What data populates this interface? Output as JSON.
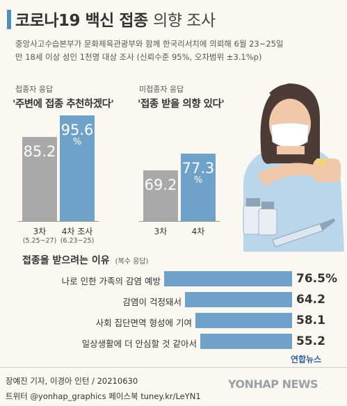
{
  "title": {
    "main": "코로나19 백신 접종",
    "rest": "의향 조사"
  },
  "subtitle": {
    "line1": "중앙사고수습본부가 문화체육관광부와 함께 한국리서치에 의뢰해 6월 23~25일",
    "line2": "만 18세 이상 성인 1천명 대상 조사 (신뢰수준 95%, 오차범위 ±3.1%p)"
  },
  "colors": {
    "bar_gray": "#a9a9a9",
    "bar_blue": "#6fa2c8",
    "accent": "#4a90b8",
    "background": "#fbf8f1"
  },
  "chart_data": [
    {
      "type": "bar",
      "group_label": "접종자 응답",
      "title": "'주변에 접종 추천하겠다'",
      "categories": [
        "3차",
        "4차 조사"
      ],
      "category_notes": [
        "(5.25~27)",
        "(6.23~25)"
      ],
      "values": [
        85.2,
        95.6
      ],
      "value_labels": [
        "85.2",
        "95.6"
      ],
      "unit": "%",
      "colors": [
        "#a9a9a9",
        "#6fa2c8"
      ],
      "ylim": [
        0,
        100
      ]
    },
    {
      "type": "bar",
      "group_label": "미접종자 응답",
      "title": "'접종 받을 의향 있다'",
      "categories": [
        "3차",
        "4차"
      ],
      "values": [
        69.2,
        77.3
      ],
      "value_labels": [
        "69.2",
        "77.3"
      ],
      "unit": "%",
      "colors": [
        "#a9a9a9",
        "#6fa2c8"
      ],
      "ylim": [
        0,
        100
      ]
    },
    {
      "type": "bar",
      "orientation": "horizontal",
      "title": "접종을 받으려는 이유",
      "note": "(복수 응답)",
      "categories": [
        "나로 인한 가족의 감염 예방",
        "감염이 걱정돼서",
        "사회 집단면역 형성에 기여",
        "일상생활에 더 안심할 것 같아서"
      ],
      "values": [
        76.5,
        64.2,
        58.1,
        55.2
      ],
      "value_labels": [
        "76.5%",
        "64.2",
        "58.1",
        "55.2"
      ],
      "color": "#6fa2c8",
      "xlim": [
        0,
        100
      ]
    }
  ],
  "credits": {
    "line1": "장예진 기자, 이경아 인턴 / 20210630",
    "line2": "트위터 @yonhap_graphics  페이스북 tuney.kr/LeYN1",
    "logo_small": "연합뉴스",
    "logo_big": "YONHAP NEWS"
  }
}
